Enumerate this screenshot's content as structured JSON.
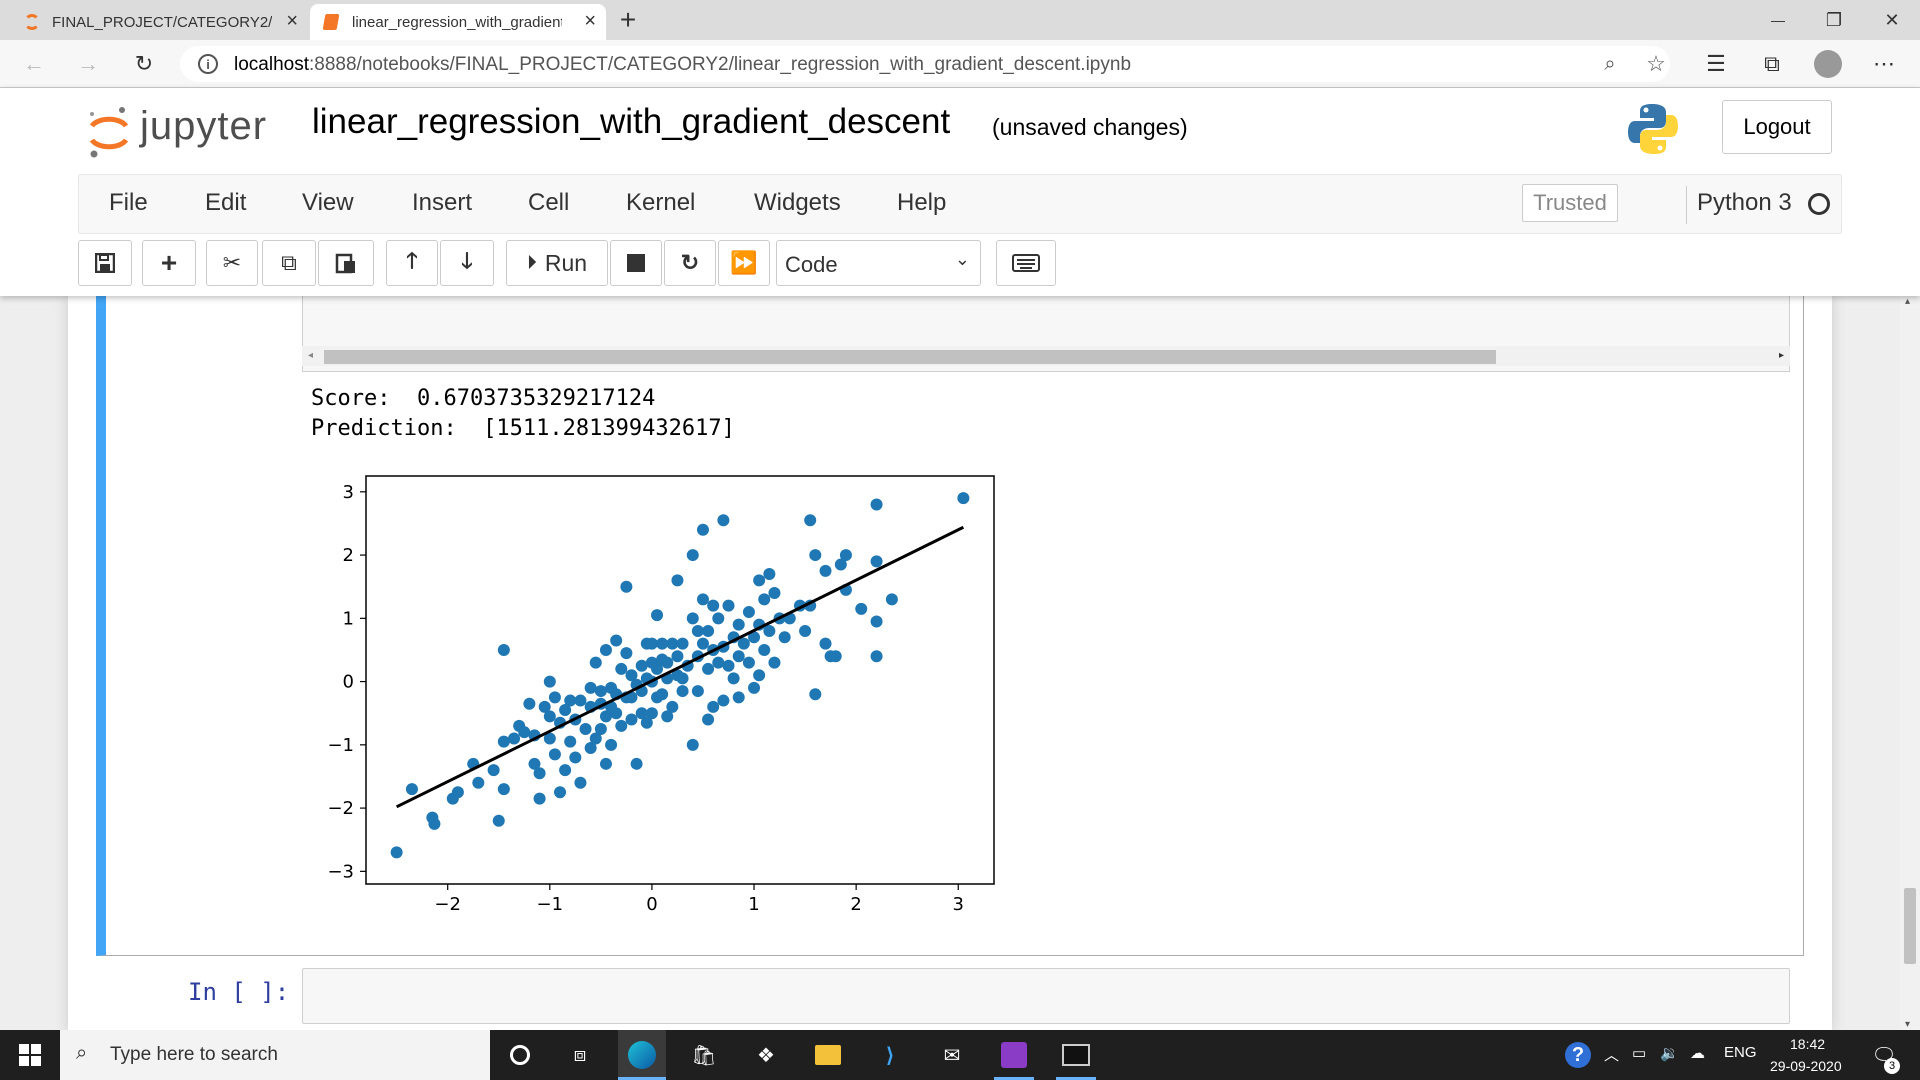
{
  "browser": {
    "tabs": [
      {
        "label": "FINAL_PROJECT/CATEGORY2/",
        "active": false
      },
      {
        "label": "linear_regression_with_gradient_",
        "active": true
      }
    ],
    "new_tab_glyph": "+",
    "close_glyph": "×",
    "url_host": "localhost",
    "url_rest": ":8888/notebooks/FINAL_PROJECT/CATEGORY2/linear_regression_with_gradient_descent.ipynb",
    "window_controls": {
      "minimize": "—",
      "maximize": "❐",
      "close": "✕"
    },
    "toolbar_icons": [
      "zoom-icon",
      "star-icon",
      "favorites-icon",
      "collections-icon",
      "profile-icon",
      "more-icon"
    ]
  },
  "jupyter": {
    "logo_text": "jupyter",
    "notebook_name": "linear_regression_with_gradient_descent",
    "status": "(unsaved changes)",
    "logout_label": "Logout",
    "menu": [
      "File",
      "Edit",
      "View",
      "Insert",
      "Cell",
      "Kernel",
      "Widgets",
      "Help"
    ],
    "trusted_label": "Trusted",
    "kernel_name": "Python 3",
    "run_label": "Run",
    "cell_type": "Code",
    "colors": {
      "selected_cell_bar": "#42a5f5",
      "prompt": "#303f9f",
      "points": "#1f77b4"
    }
  },
  "output": {
    "score_line": "Score:  0.6703735329217124",
    "prediction_line": "Prediction:  [1511.281399432617]"
  },
  "next_cell": {
    "prompt": "In [ ]:"
  },
  "chart_data": {
    "type": "scatter",
    "title": "",
    "xlabel": "",
    "ylabel": "",
    "xlim": [
      -2.8,
      3.35
    ],
    "ylim": [
      -3.2,
      3.25
    ],
    "xticks": [
      -2,
      -1,
      0,
      1,
      2,
      3
    ],
    "yticks": [
      -3,
      -2,
      -1,
      0,
      1,
      2,
      3
    ],
    "xtick_labels": [
      "−2",
      "−1",
      "0",
      "1",
      "2",
      "3"
    ],
    "ytick_labels": [
      "−3",
      "−2",
      "−1",
      "0",
      "1",
      "2",
      "3"
    ],
    "grid": false,
    "series": [
      {
        "points": [
          [
            -2.5,
            -2.7
          ],
          [
            -2.35,
            -1.7
          ],
          [
            -2.15,
            -2.15
          ],
          [
            -2.13,
            -2.25
          ],
          [
            -1.95,
            -1.85
          ],
          [
            -1.9,
            -1.75
          ],
          [
            -1.75,
            -1.3
          ],
          [
            -1.7,
            -1.6
          ],
          [
            -1.55,
            -1.4
          ],
          [
            -1.5,
            -2.2
          ],
          [
            -1.45,
            0.5
          ],
          [
            -1.45,
            -0.95
          ],
          [
            -1.45,
            -1.7
          ],
          [
            -1.35,
            -0.9
          ],
          [
            -1.3,
            -0.7
          ],
          [
            -1.25,
            -0.8
          ],
          [
            -1.2,
            -0.35
          ],
          [
            -1.15,
            -0.85
          ],
          [
            -1.15,
            -1.3
          ],
          [
            -1.1,
            -1.85
          ],
          [
            -1.1,
            -1.45
          ],
          [
            -1.05,
            -0.4
          ],
          [
            -1.0,
            -0.9
          ],
          [
            -1.0,
            -0.55
          ],
          [
            -1.0,
            0.0
          ],
          [
            -0.95,
            -0.25
          ],
          [
            -0.95,
            -1.15
          ],
          [
            -0.9,
            -0.65
          ],
          [
            -0.9,
            -1.75
          ],
          [
            -0.85,
            -0.45
          ],
          [
            -0.85,
            -1.4
          ],
          [
            -0.8,
            -0.3
          ],
          [
            -0.8,
            -0.95
          ],
          [
            -0.75,
            -1.2
          ],
          [
            -0.75,
            -0.6
          ],
          [
            -0.7,
            -0.3
          ],
          [
            -0.7,
            -1.6
          ],
          [
            -0.65,
            -0.75
          ],
          [
            -0.6,
            -0.1
          ],
          [
            -0.6,
            -1.05
          ],
          [
            -0.6,
            -0.4
          ],
          [
            -0.55,
            -0.9
          ],
          [
            -0.55,
            0.3
          ],
          [
            -0.5,
            -0.35
          ],
          [
            -0.5,
            -0.75
          ],
          [
            -0.5,
            -0.15
          ],
          [
            -0.45,
            -0.55
          ],
          [
            -0.45,
            -1.3
          ],
          [
            -0.45,
            0.5
          ],
          [
            -0.4,
            -0.1
          ],
          [
            -0.4,
            -0.4
          ],
          [
            -0.4,
            -1.0
          ],
          [
            -0.35,
            -0.2
          ],
          [
            -0.35,
            0.65
          ],
          [
            -0.35,
            -0.5
          ],
          [
            -0.3,
            0.2
          ],
          [
            -0.3,
            -0.7
          ],
          [
            -0.25,
            1.5
          ],
          [
            -0.25,
            -0.25
          ],
          [
            -0.25,
            0.45
          ],
          [
            -0.2,
            -0.6
          ],
          [
            -0.2,
            0.1
          ],
          [
            -0.2,
            -0.25
          ],
          [
            -0.15,
            -0.05
          ],
          [
            -0.15,
            -1.3
          ],
          [
            -0.1,
            -0.5
          ],
          [
            -0.1,
            0.25
          ],
          [
            -0.1,
            -0.15
          ],
          [
            -0.05,
            0.6
          ],
          [
            -0.05,
            0.05
          ],
          [
            -0.05,
            -0.65
          ],
          [
            0.0,
            0.0
          ],
          [
            0.0,
            0.3
          ],
          [
            0.0,
            -0.5
          ],
          [
            0.0,
            0.6
          ],
          [
            0.05,
            -0.25
          ],
          [
            0.05,
            0.2
          ],
          [
            0.05,
            1.05
          ],
          [
            0.1,
            0.6
          ],
          [
            0.1,
            -0.2
          ],
          [
            0.1,
            0.35
          ],
          [
            0.15,
            0.05
          ],
          [
            0.15,
            -0.55
          ],
          [
            0.15,
            0.3
          ],
          [
            0.2,
            0.6
          ],
          [
            0.2,
            -0.4
          ],
          [
            0.25,
            0.1
          ],
          [
            0.25,
            0.4
          ],
          [
            0.25,
            1.6
          ],
          [
            0.3,
            0.05
          ],
          [
            0.3,
            0.6
          ],
          [
            0.3,
            -0.15
          ],
          [
            0.35,
            0.25
          ],
          [
            0.4,
            1.0
          ],
          [
            0.4,
            -1.0
          ],
          [
            0.4,
            2.0
          ],
          [
            0.45,
            0.4
          ],
          [
            0.45,
            0.8
          ],
          [
            0.45,
            -0.15
          ],
          [
            0.5,
            0.6
          ],
          [
            0.5,
            2.4
          ],
          [
            0.5,
            1.3
          ],
          [
            0.55,
            -0.6
          ],
          [
            0.55,
            0.2
          ],
          [
            0.55,
            0.8
          ],
          [
            0.6,
            -0.4
          ],
          [
            0.6,
            0.5
          ],
          [
            0.6,
            1.2
          ],
          [
            0.65,
            1.0
          ],
          [
            0.65,
            0.3
          ],
          [
            0.7,
            2.55
          ],
          [
            0.7,
            0.55
          ],
          [
            0.7,
            -0.3
          ],
          [
            0.75,
            1.2
          ],
          [
            0.75,
            0.25
          ],
          [
            0.8,
            0.7
          ],
          [
            0.8,
            0.05
          ],
          [
            0.85,
            0.9
          ],
          [
            0.85,
            0.4
          ],
          [
            0.85,
            -0.25
          ],
          [
            0.9,
            0.6
          ],
          [
            0.95,
            0.3
          ],
          [
            0.95,
            1.1
          ],
          [
            1.0,
            0.7
          ],
          [
            1.0,
            -0.1
          ],
          [
            1.05,
            0.9
          ],
          [
            1.05,
            1.6
          ],
          [
            1.05,
            0.1
          ],
          [
            1.1,
            0.5
          ],
          [
            1.1,
            1.3
          ],
          [
            1.15,
            1.7
          ],
          [
            1.15,
            0.8
          ],
          [
            1.2,
            0.3
          ],
          [
            1.2,
            1.4
          ],
          [
            1.25,
            1.0
          ],
          [
            1.3,
            0.7
          ],
          [
            1.35,
            1.0
          ],
          [
            1.45,
            1.2
          ],
          [
            1.5,
            0.8
          ],
          [
            1.55,
            2.55
          ],
          [
            1.55,
            1.2
          ],
          [
            1.6,
            2.0
          ],
          [
            1.6,
            -0.2
          ],
          [
            1.7,
            1.75
          ],
          [
            1.7,
            0.6
          ],
          [
            1.75,
            0.4
          ],
          [
            1.8,
            0.4
          ],
          [
            1.85,
            1.85
          ],
          [
            1.9,
            2.0
          ],
          [
            1.9,
            1.45
          ],
          [
            2.05,
            1.15
          ],
          [
            2.2,
            0.95
          ],
          [
            2.2,
            1.9
          ],
          [
            2.2,
            0.4
          ],
          [
            2.2,
            2.8
          ],
          [
            2.35,
            1.3
          ],
          [
            3.05,
            2.9
          ]
        ]
      }
    ],
    "fit_line": {
      "x": [
        -2.5,
        3.05
      ],
      "y": [
        -1.98,
        2.44
      ]
    }
  }
}
